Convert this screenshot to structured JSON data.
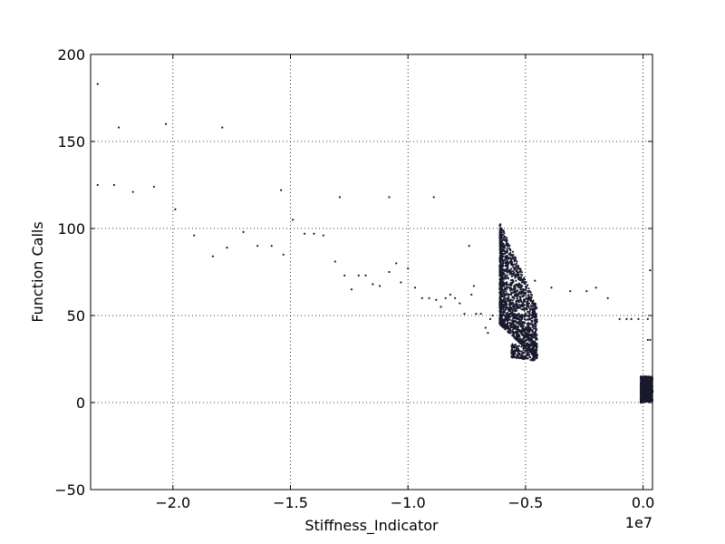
{
  "chart_data": {
    "type": "scatter",
    "title": "",
    "xlabel": "Stiffness_Indicator",
    "ylabel": "Function Calls",
    "x_offset_label": "1e7",
    "x_scale": 10000000,
    "xlim": [
      -2.35,
      0.04
    ],
    "ylim": [
      -50,
      200
    ],
    "xticks": [
      -2.0,
      -1.5,
      -1.0,
      -0.5,
      0.0
    ],
    "xtick_labels": [
      "−2.0",
      "−1.5",
      "−1.0",
      "−0.5",
      "0.0"
    ],
    "yticks": [
      -50,
      0,
      50,
      100,
      150,
      200
    ],
    "ytick_labels": [
      "−50",
      "0",
      "50",
      "100",
      "150",
      "200"
    ],
    "grid": true,
    "marker_color": "#1a1a2e",
    "series": [
      {
        "points": [
          [
            -2.32,
            183
          ],
          [
            -2.32,
            125
          ],
          [
            -2.25,
            125
          ],
          [
            -2.23,
            158
          ],
          [
            -2.17,
            121
          ],
          [
            -2.08,
            124
          ],
          [
            -2.03,
            160
          ],
          [
            -1.99,
            111
          ],
          [
            -1.91,
            96
          ],
          [
            -1.83,
            84
          ],
          [
            -1.79,
            158
          ],
          [
            -1.77,
            89
          ],
          [
            -1.7,
            98
          ],
          [
            -1.64,
            90
          ],
          [
            -1.58,
            90
          ],
          [
            -1.54,
            122
          ],
          [
            -1.53,
            85
          ],
          [
            -1.49,
            105
          ],
          [
            -1.44,
            97
          ],
          [
            -1.4,
            97
          ],
          [
            -1.36,
            96
          ],
          [
            -1.31,
            81
          ],
          [
            -1.29,
            118
          ],
          [
            -1.27,
            73
          ],
          [
            -1.24,
            65
          ],
          [
            -1.21,
            73
          ],
          [
            -1.18,
            73
          ],
          [
            -1.15,
            68
          ],
          [
            -1.12,
            67
          ],
          [
            -1.08,
            118
          ],
          [
            -1.08,
            75
          ],
          [
            -1.05,
            80
          ],
          [
            -1.03,
            69
          ],
          [
            -1.0,
            77
          ],
          [
            -0.97,
            66
          ],
          [
            -0.94,
            60
          ],
          [
            -0.91,
            60
          ],
          [
            -0.89,
            118
          ],
          [
            -0.88,
            59
          ],
          [
            -0.86,
            55
          ],
          [
            -0.84,
            60
          ],
          [
            -0.82,
            62
          ],
          [
            -0.8,
            60
          ],
          [
            -0.78,
            57
          ],
          [
            -0.76,
            51
          ],
          [
            -0.74,
            90
          ],
          [
            -0.73,
            62
          ],
          [
            -0.72,
            67
          ],
          [
            -0.71,
            51
          ],
          [
            -0.69,
            51
          ],
          [
            -0.67,
            43
          ],
          [
            -0.66,
            40
          ],
          [
            -0.65,
            48
          ],
          [
            -0.64,
            50
          ],
          [
            -0.46,
            70
          ],
          [
            -0.39,
            66
          ],
          [
            -0.31,
            64
          ],
          [
            -0.24,
            64
          ],
          [
            -0.2,
            66
          ],
          [
            -0.15,
            60
          ],
          [
            -0.1,
            48
          ],
          [
            -0.07,
            48
          ],
          [
            -0.05,
            48
          ],
          [
            -0.02,
            48
          ],
          [
            0.02,
            48
          ],
          [
            0.03,
            76
          ],
          [
            0.02,
            36
          ],
          [
            0.03,
            36
          ]
        ],
        "clusters": [
          {
            "x_min": -0.61,
            "x_max": -0.45,
            "y_top_start": 104,
            "y_top_end": 55,
            "y_bottom_start": 45,
            "y_bottom_end": 25,
            "count": 1600
          },
          {
            "x_min": -0.61,
            "x_max": -0.6,
            "y_top_start": 104,
            "y_top_end": 96,
            "y_bottom_start": 45,
            "y_bottom_end": 45,
            "count": 220
          },
          {
            "x_min": -0.56,
            "x_max": -0.46,
            "y_top_start": 34,
            "y_top_end": 30,
            "y_bottom_start": 26,
            "y_bottom_end": 24,
            "count": 160
          },
          {
            "x_min": -0.01,
            "x_max": 0.04,
            "y_top_start": 15,
            "y_top_end": 15,
            "y_bottom_start": 0,
            "y_bottom_end": 1,
            "count": 900
          }
        ]
      }
    ]
  }
}
